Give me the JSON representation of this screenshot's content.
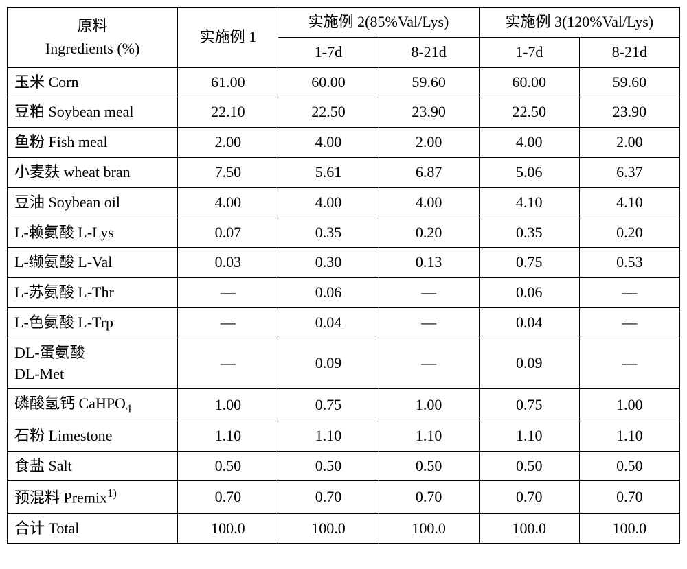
{
  "table": {
    "header": {
      "col0_line1": "原料",
      "col0_line2": "Ingredients (%)",
      "col1": "实施例 1",
      "group2": "实施例 2(85%Val/Lys)",
      "group3": "实施例 3(120%Val/Lys)",
      "sub_1_7d": "1-7d",
      "sub_8_21d": "8-21d"
    },
    "rows": [
      {
        "label": "玉米  Corn",
        "v": [
          "61.00",
          "60.00",
          "59.60",
          "60.00",
          "59.60"
        ]
      },
      {
        "label": "豆粕  Soybean meal",
        "v": [
          "22.10",
          "22.50",
          "23.90",
          "22.50",
          "23.90"
        ]
      },
      {
        "label": "鱼粉  Fish meal",
        "v": [
          "2.00",
          "4.00",
          "2.00",
          "4.00",
          "2.00"
        ]
      },
      {
        "label": "小麦麸  wheat bran",
        "v": [
          "7.50",
          "5.61",
          "6.87",
          "5.06",
          "6.37"
        ]
      },
      {
        "label": "豆油  Soybean oil",
        "v": [
          "4.00",
          "4.00",
          "4.00",
          "4.10",
          "4.10"
        ]
      },
      {
        "label": "L-赖氨酸  L-Lys",
        "v": [
          "0.07",
          "0.35",
          "0.20",
          "0.35",
          "0.20"
        ]
      },
      {
        "label": "L-缬氨酸  L-Val",
        "v": [
          "0.03",
          "0.30",
          "0.13",
          "0.75",
          "0.53"
        ]
      },
      {
        "label": "L-苏氨酸  L-Thr",
        "v": [
          "—",
          "0.06",
          "—",
          "0.06",
          "—"
        ]
      },
      {
        "label": "L-色氨酸  L-Trp",
        "v": [
          "—",
          "0.04",
          "—",
          "0.04",
          "—"
        ]
      }
    ],
    "dlmet": {
      "label_line1": "DL-蛋氨酸",
      "label_line2": "DL-Met",
      "v": [
        "—",
        "0.09",
        "—",
        "0.09",
        "—"
      ]
    },
    "cahpo4": {
      "label_prefix": "磷酸氢钙  CaHPO",
      "label_sub": "4",
      "v": [
        "1.00",
        "0.75",
        "1.00",
        "0.75",
        "1.00"
      ]
    },
    "rows2": [
      {
        "label": "石粉  Limestone",
        "v": [
          "1.10",
          "1.10",
          "1.10",
          "1.10",
          "1.10"
        ]
      },
      {
        "label": "食盐  Salt",
        "v": [
          "0.50",
          "0.50",
          "0.50",
          "0.50",
          "0.50"
        ]
      }
    ],
    "premix": {
      "label_prefix": "预混料 Premix",
      "label_sup": "1)",
      "v": [
        "0.70",
        "0.70",
        "0.70",
        "0.70",
        "0.70"
      ]
    },
    "total": {
      "label": "合计  Total",
      "v": [
        "100.0",
        "100.0",
        "100.0",
        "100.0",
        "100.0"
      ]
    }
  }
}
